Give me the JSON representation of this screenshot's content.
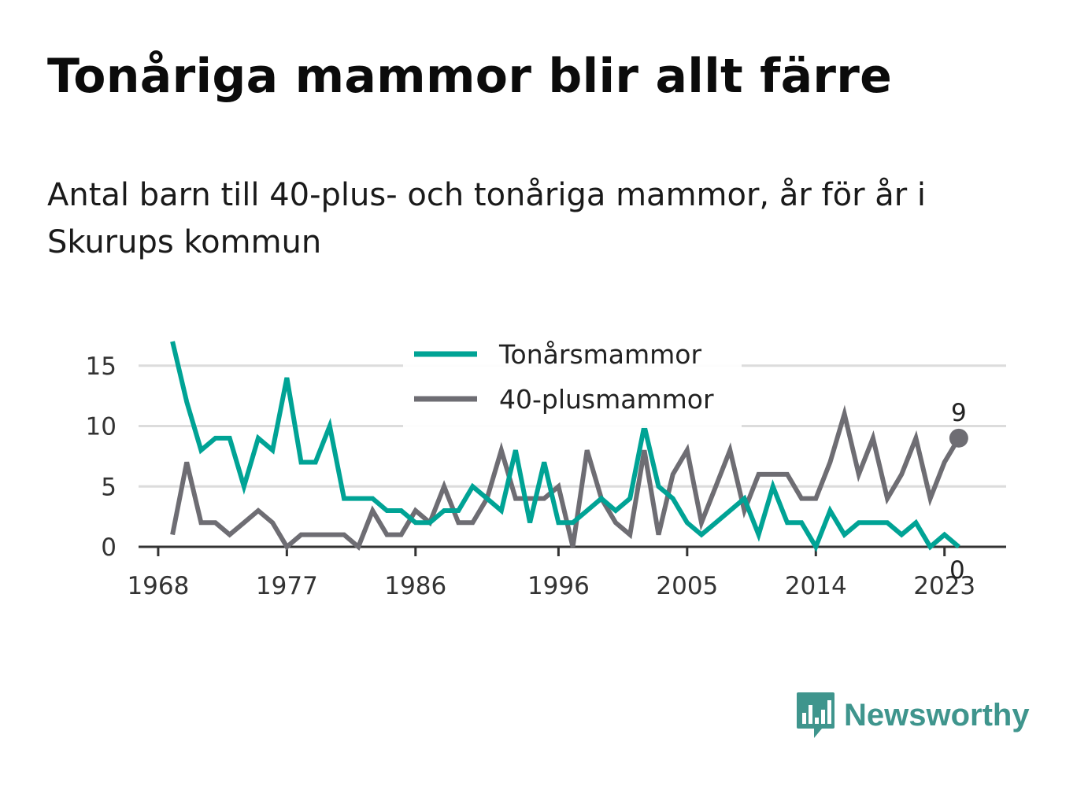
{
  "title": "Tonåriga mammor blir allt färre",
  "subtitle": "Antal barn till 40-plus- och tonåriga mammor, år för år i Skurups kommun",
  "logo_text": "Newsworthy",
  "colors": {
    "teen": "#00a395",
    "plus40": "#6e6d73",
    "grid": "#dcdcdc",
    "axis": "#333333",
    "logo": "#3f958d"
  },
  "chart_data": {
    "type": "line",
    "x_ticks": [
      1968,
      1977,
      1986,
      1996,
      2005,
      2014,
      2023
    ],
    "y_ticks": [
      0,
      5,
      10,
      15
    ],
    "xlim": [
      1968,
      2027
    ],
    "ylim": [
      0,
      17
    ],
    "grid": true,
    "legend_placement": "top-center",
    "x": [
      1969,
      1970,
      1971,
      1972,
      1973,
      1974,
      1975,
      1976,
      1977,
      1978,
      1979,
      1980,
      1981,
      1982,
      1983,
      1984,
      1985,
      1986,
      1987,
      1988,
      1989,
      1990,
      1991,
      1992,
      1993,
      1994,
      1995,
      1996,
      1997,
      1998,
      1999,
      2000,
      2001,
      2002,
      2003,
      2004,
      2005,
      2006,
      2007,
      2008,
      2009,
      2010,
      2011,
      2012,
      2013,
      2014,
      2015,
      2016,
      2017,
      2018,
      2019,
      2020,
      2021,
      2022,
      2023,
      2024
    ],
    "series": [
      {
        "name": "Tonårsmammor",
        "color": "#00a395",
        "values": [
          17,
          12,
          8,
          9,
          9,
          5,
          9,
          8,
          14,
          7,
          7,
          10,
          4,
          4,
          4,
          3,
          3,
          2,
          2,
          3,
          3,
          5,
          4,
          3,
          8,
          2,
          7,
          2,
          2,
          3,
          4,
          3,
          4,
          10,
          5,
          4,
          2,
          1,
          2,
          3,
          4,
          1,
          5,
          2,
          2,
          0,
          3,
          1,
          2,
          2,
          2,
          1,
          2,
          0,
          1,
          0
        ],
        "end_label": "0"
      },
      {
        "name": "40-plusmammor",
        "color": "#6e6d73",
        "values": [
          1,
          7,
          2,
          2,
          1,
          2,
          3,
          2,
          0,
          1,
          1,
          1,
          1,
          0,
          3,
          1,
          1,
          3,
          2,
          5,
          2,
          2,
          4,
          8,
          4,
          4,
          4,
          5,
          0,
          8,
          4,
          2,
          1,
          8,
          1,
          6,
          8,
          2,
          5,
          8,
          3,
          6,
          6,
          6,
          4,
          4,
          7,
          11,
          6,
          9,
          4,
          6,
          9,
          4,
          7,
          9
        ],
        "end_label": "9"
      }
    ]
  }
}
